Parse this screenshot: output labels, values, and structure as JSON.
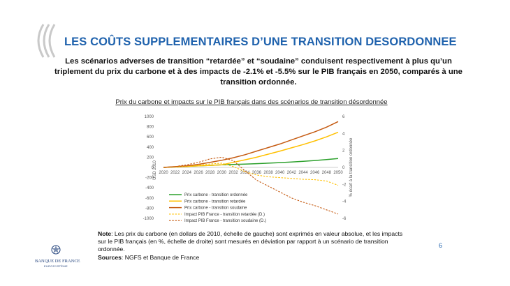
{
  "slide": {
    "title": "LES COÛTS SUPPLEMENTAIRES  D’UNE TRANSITION  DESORDONNEE",
    "subtitle": "Les scénarios adverses de transition “retardée” et “soudaine” conduisent respectivement à plus qu’un triplement du prix du carbone et à des impacts de -2.1% et -5.5% sur le PIB français en 2050, comparés à une transition ordonnée.",
    "page_number": "6",
    "logo": {
      "line1": "BANQUE DE FRANCE",
      "line2": "EUROSYSTÈME"
    },
    "note": {
      "note_label": "Note",
      "note_text": ": Les prix du carbone (en dollars de 2010, échelle de gauche) sont exprimés en valeur absolue, et les impacts sur le PIB français (en %, échelle de droite) sont mesurés en déviation par rapport à un scénario de transition ordonnée.",
      "sources_label": "Sources",
      "sources_text": ": NGFS et Banque de France"
    }
  },
  "colors": {
    "title": "#1f62ad",
    "ordonnee": "#2ca02c",
    "retardee": "#ffc000",
    "soudaine": "#c55a11",
    "pib_retardee": "#ffc000",
    "pib_soudaine": "#c55a11"
  },
  "chart_data": {
    "type": "line",
    "title": "Prix du carbone et impacts sur le PIB français dans des scénarios de transition désordonnée",
    "x": [
      2020,
      2022,
      2024,
      2026,
      2028,
      2030,
      2032,
      2034,
      2036,
      2038,
      2040,
      2042,
      2044,
      2046,
      2048,
      2050
    ],
    "x_tick_labels": [
      "2020",
      "2022",
      "2024",
      "2026",
      "2028",
      "2030",
      "2032",
      "2034",
      "2036",
      "2038",
      "2040",
      "2042",
      "2044",
      "2046",
      "2048",
      "2050"
    ],
    "ylabel_left": "USD 2010",
    "ylim_left": [
      -1000,
      1000
    ],
    "yticks_left": [
      1000,
      800,
      600,
      400,
      200,
      0,
      -200,
      -400,
      -600,
      -800,
      -1000
    ],
    "ylabel_right": "% écart à la transition ordonnée",
    "ylim_right": [
      -6,
      6
    ],
    "yticks_right": [
      6,
      4,
      2,
      0,
      -2,
      -4,
      -6
    ],
    "series": [
      {
        "name": "Prix carbone - transition ordonnée",
        "axis": "left",
        "style": "solid",
        "values": [
          0,
          10,
          20,
          30,
          40,
          50,
          57,
          65,
          74,
          84,
          94,
          106,
          120,
          136,
          153,
          175
        ]
      },
      {
        "name": "Prix carbone - transition retardée",
        "axis": "left",
        "style": "solid",
        "values": [
          0,
          10,
          20,
          30,
          40,
          50,
          100,
          150,
          200,
          260,
          320,
          385,
          450,
          520,
          600,
          690
        ]
      },
      {
        "name": "Prix carbone - transition soudaine",
        "axis": "left",
        "style": "solid",
        "values": [
          0,
          15,
          30,
          60,
          100,
          140,
          190,
          250,
          320,
          390,
          460,
          540,
          620,
          700,
          790,
          900
        ]
      },
      {
        "name": "Impact PIB France - transition retardée (D.)",
        "axis": "right",
        "style": "dashed",
        "values": [
          0,
          0.05,
          0.1,
          0.25,
          0.4,
          0.5,
          0.1,
          -0.5,
          -0.9,
          -1.1,
          -1.2,
          -1.3,
          -1.4,
          -1.45,
          -1.6,
          -2.1
        ]
      },
      {
        "name": "Impact PIB France - transition soudaine (D.)",
        "axis": "right",
        "style": "dashed",
        "values": [
          0,
          0.1,
          0.3,
          0.6,
          1.0,
          1.2,
          0.8,
          -0.4,
          -1.5,
          -2.2,
          -2.9,
          -3.6,
          -4.1,
          -4.5,
          -5.0,
          -5.5
        ]
      }
    ],
    "legend_position": "bottom-left"
  }
}
